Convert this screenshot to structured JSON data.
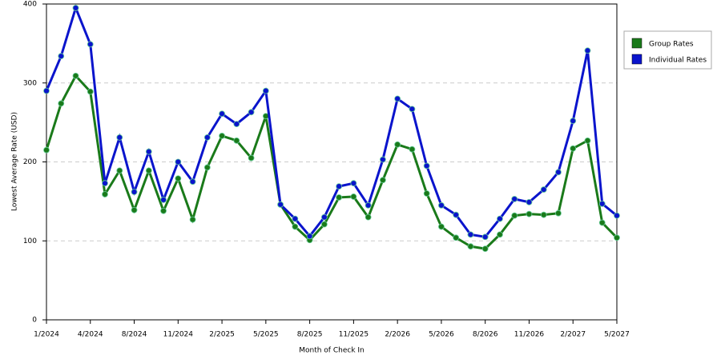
{
  "chart_data": {
    "type": "line",
    "x_label": "Month of Check In",
    "y_label": "Lowest Average Rate (USD)",
    "categories": [
      "1/2024",
      null,
      null,
      "4/2024",
      null,
      null,
      "8/2024",
      null,
      null,
      "11/2024",
      null,
      null,
      "2/2025",
      null,
      null,
      "5/2025",
      null,
      null,
      "8/2025",
      null,
      null,
      "11/2025",
      null,
      null,
      "2/2026",
      null,
      null,
      "5/2026",
      null,
      null,
      "8/2026",
      null,
      null,
      "11/2026",
      null,
      null,
      "2/2027",
      null,
      null,
      "5/2027"
    ],
    "series": [
      {
        "name": "Group Rates",
        "color": "#1a7a1a",
        "values": [
          215,
          274,
          309,
          289,
          159,
          189,
          139,
          189,
          138,
          179,
          127,
          193,
          233,
          227,
          205,
          258,
          146,
          118,
          101,
          121,
          155,
          156,
          130,
          177,
          222,
          216,
          160,
          118,
          104,
          93,
          90,
          108,
          132,
          134,
          133,
          135,
          217,
          227,
          123,
          104
        ]
      },
      {
        "name": "Individual Rates",
        "color": "#0a14cc",
        "values": [
          290,
          334,
          395,
          349,
          173,
          231,
          162,
          213,
          152,
          200,
          175,
          231,
          261,
          248,
          263,
          290,
          146,
          128,
          106,
          130,
          169,
          173,
          145,
          203,
          280,
          267,
          195,
          145,
          133,
          108,
          105,
          128,
          153,
          149,
          165,
          187,
          252,
          341,
          147,
          132
        ]
      }
    ],
    "ylim": [
      0,
      400
    ],
    "yticks": [
      0,
      100,
      200,
      300,
      400
    ],
    "grid": true,
    "legend": "right"
  }
}
